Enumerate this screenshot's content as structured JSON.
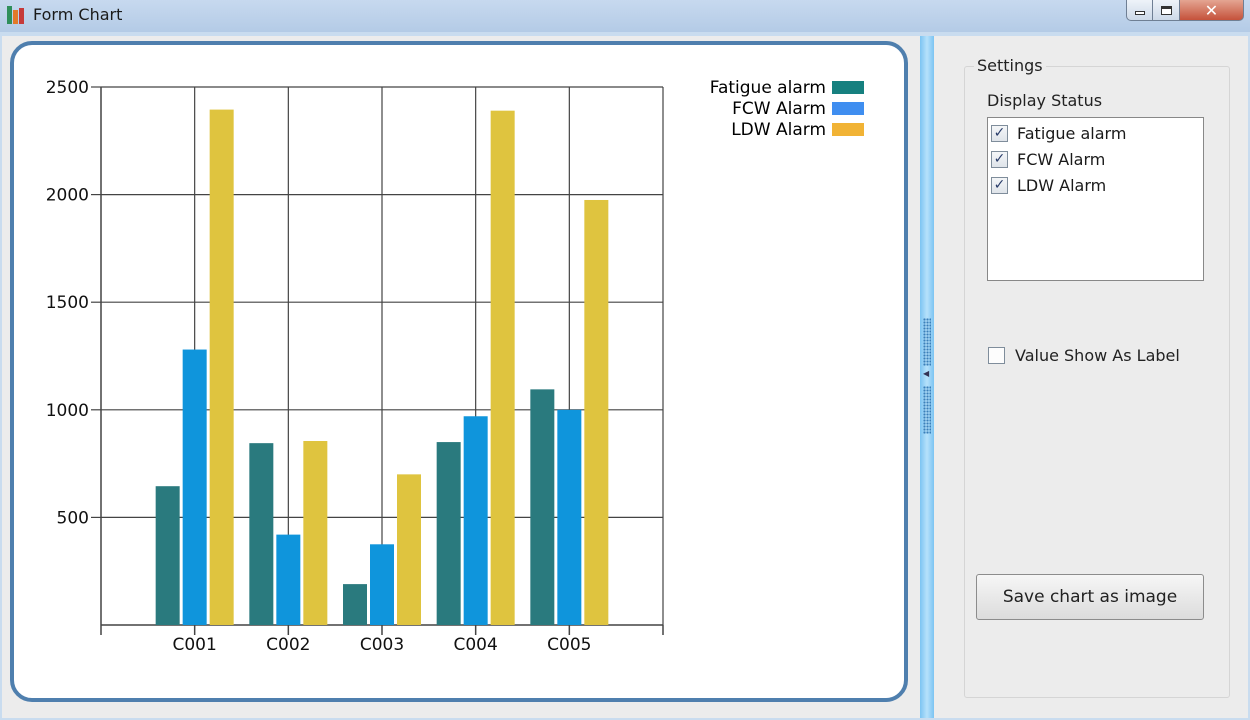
{
  "window": {
    "title": "Form Chart",
    "close_glyph": "✕"
  },
  "settings": {
    "group_title": "Settings",
    "display_status_label": "Display Status",
    "series_items": [
      {
        "label": "Fatigue alarm",
        "checked": true
      },
      {
        "label": "FCW Alarm",
        "checked": true
      },
      {
        "label": "LDW Alarm",
        "checked": true
      }
    ],
    "value_show_as_label": {
      "label": "Value Show As Label",
      "checked": false
    },
    "save_button": "Save chart as image"
  },
  "colors": {
    "panel_border": "#4f7fae",
    "splitter": "#7cc4f2"
  },
  "chart_data": {
    "type": "bar",
    "categories": [
      "C001",
      "C002",
      "C003",
      "C004",
      "C005"
    ],
    "series": [
      {
        "name": "Fatigue alarm",
        "color": "#2a7a7e",
        "legend_color": "#16807f",
        "values": [
          645,
          845,
          190,
          850,
          1095
        ]
      },
      {
        "name": "FCW Alarm",
        "color": "#0f95dc",
        "legend_color": "#3f8ef0",
        "values": [
          1280,
          420,
          375,
          970,
          1000
        ]
      },
      {
        "name": "LDW Alarm",
        "color": "#dfc43f",
        "legend_color": "#f1b335",
        "values": [
          2395,
          855,
          700,
          2390,
          1975
        ]
      }
    ],
    "yticks": [
      500,
      1000,
      1500,
      2000,
      2500
    ],
    "ylim": [
      0,
      2500
    ],
    "grid": true,
    "legend_placement": "top-right"
  }
}
